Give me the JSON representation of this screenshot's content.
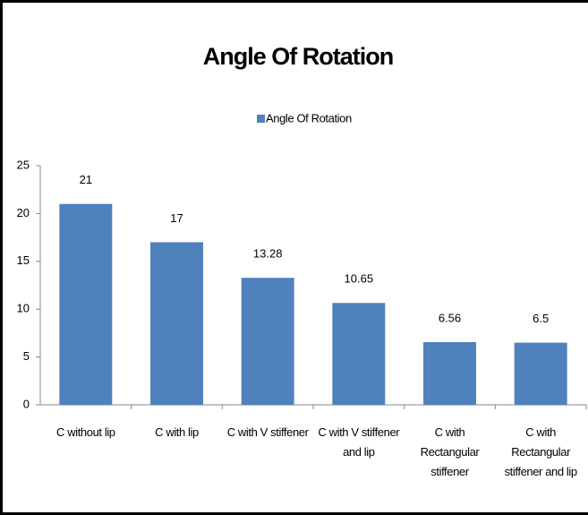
{
  "chart_data": {
    "type": "bar",
    "title": "Angle Of Rotation",
    "legend": "Angle Of Rotation",
    "legend_position": "top",
    "categories": [
      "C without lip",
      "C with lip",
      "C with V stiffener",
      "C with V stiffener and lip",
      "C with Rectangular stiffener",
      "C with Rectangular stiffener and lip"
    ],
    "values": [
      21,
      17,
      13.28,
      10.65,
      6.56,
      6.5
    ],
    "color": "#4f81bd",
    "ylim": [
      0,
      25
    ],
    "yticks": [
      0,
      5,
      10,
      15,
      20,
      25
    ],
    "grid": false
  }
}
